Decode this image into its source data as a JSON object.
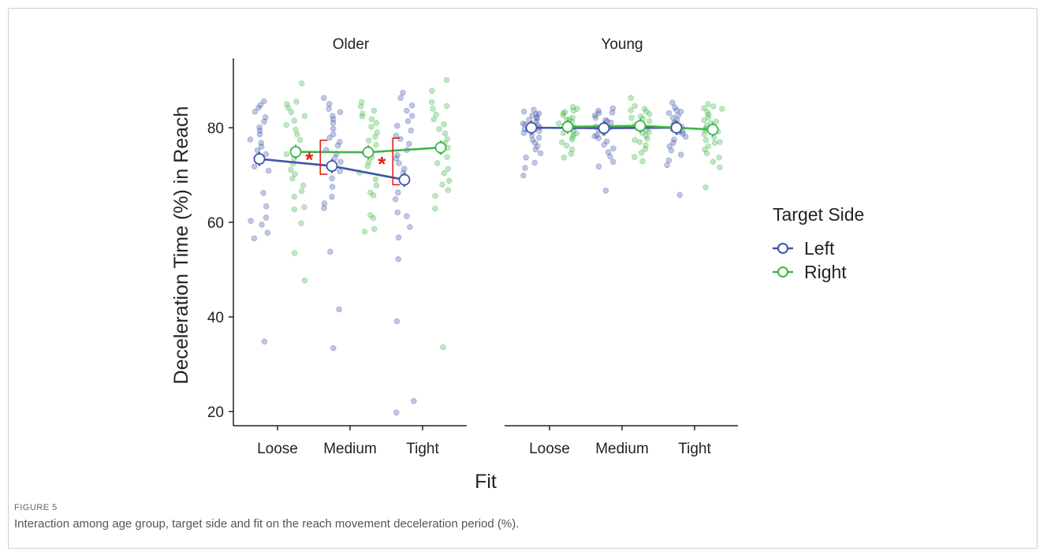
{
  "figure": {
    "label": "FIGURE 5",
    "caption": "Interaction among age group, target side and fit on the reach movement deceleration period (%)."
  },
  "chart_data": {
    "type": "scatter",
    "panels": [
      "Older",
      "Young"
    ],
    "categories": [
      "Loose",
      "Medium",
      "Tight"
    ],
    "xlabel": "Fit",
    "ylabel": "Deceleration Time (%) in Reach",
    "yticks": [
      20,
      40,
      60,
      80
    ],
    "ylim": [
      17,
      94
    ],
    "legend": {
      "title": "Target Side",
      "placement": "right",
      "entries": [
        "Left",
        "Right"
      ]
    },
    "colors": {
      "Left": "#3f55a6",
      "Right": "#3db54a",
      "significance": "#e0201c"
    },
    "significance_marker": "*",
    "significance_brackets": [
      {
        "panel": "Older",
        "between": [
          "Loose",
          "Medium"
        ]
      },
      {
        "panel": "Older",
        "between": [
          "Medium",
          "Tight"
        ]
      }
    ],
    "series": [
      {
        "name": "Left",
        "panel": "Older",
        "means": [
          73.4,
          71.9,
          69.0
        ],
        "points": [
          [
            85.6,
            84.8,
            84.2,
            83.4,
            82.2,
            81.3,
            80.1,
            79.4,
            78.6,
            77.5,
            76.8,
            76.0,
            75.2,
            74.4,
            73.6,
            72.9,
            71.8,
            70.9,
            66.2,
            63.4,
            61.0,
            60.3,
            59.5,
            57.8,
            56.6,
            34.8
          ],
          [
            86.3,
            85.0,
            84.0,
            83.3,
            82.5,
            81.8,
            81.0,
            79.8,
            78.6,
            77.9,
            77.0,
            76.2,
            75.3,
            74.5,
            73.6,
            72.8,
            71.9,
            70.8,
            69.3,
            67.5,
            65.4,
            64.0,
            63.0,
            53.8,
            41.6,
            33.4
          ],
          [
            87.4,
            86.3,
            84.7,
            83.6,
            82.5,
            81.4,
            80.4,
            79.4,
            78.3,
            77.6,
            76.6,
            75.3,
            74.2,
            73.5,
            72.5,
            71.3,
            70.4,
            66.3,
            64.9,
            62.1,
            61.3,
            59.0,
            56.8,
            52.2,
            39.1,
            22.2,
            19.8
          ]
        ]
      },
      {
        "name": "Right",
        "panel": "Older",
        "means": [
          74.9,
          74.8,
          75.8
        ],
        "points": [
          [
            89.4,
            85.5,
            85.0,
            84.2,
            83.3,
            82.5,
            81.5,
            80.6,
            79.6,
            78.6,
            77.4,
            75.4,
            74.4,
            73.5,
            72.4,
            71.1,
            70.2,
            69.3,
            67.8,
            66.6,
            65.4,
            63.2,
            62.7,
            59.8,
            53.5,
            47.7
          ],
          [
            85.4,
            84.5,
            83.6,
            83.0,
            82.4,
            81.8,
            81.0,
            80.2,
            79.0,
            78.1,
            77.3,
            76.4,
            75.5,
            74.7,
            73.8,
            72.8,
            71.9,
            70.5,
            69.1,
            67.8,
            66.3,
            65.7,
            61.5,
            60.9,
            58.6,
            58.0
          ],
          [
            90.1,
            87.8,
            85.4,
            84.6,
            84.0,
            82.8,
            81.8,
            80.7,
            79.7,
            78.8,
            77.6,
            76.7,
            75.8,
            74.9,
            73.8,
            72.5,
            71.3,
            70.4,
            68.8,
            68.0,
            66.8,
            65.6,
            62.9,
            33.6
          ]
        ]
      },
      {
        "name": "Left",
        "panel": "Young",
        "means": [
          80.0,
          79.9,
          80.0
        ],
        "points": [
          [
            83.4,
            83.0,
            82.6,
            82.2,
            81.7,
            81.3,
            80.9,
            80.5,
            80.1,
            79.7,
            79.3,
            78.9,
            78.4,
            77.9,
            77.4,
            76.8,
            76.1,
            75.4,
            74.6,
            73.7,
            72.6,
            71.5,
            69.9,
            83.8,
            82.9,
            81.9,
            80.7,
            79.6
          ],
          [
            84.1,
            83.6,
            83.1,
            82.6,
            82.1,
            81.6,
            81.1,
            80.6,
            80.2,
            79.8,
            79.4,
            78.9,
            78.4,
            77.8,
            77.1,
            76.4,
            75.6,
            74.8,
            73.9,
            72.8,
            71.8,
            66.7,
            83.2,
            81.4,
            80.0,
            78.2
          ],
          [
            85.3,
            84.3,
            83.7,
            83.1,
            82.6,
            82.1,
            81.6,
            81.1,
            80.6,
            80.2,
            79.7,
            79.2,
            78.7,
            78.1,
            77.5,
            76.8,
            76.1,
            75.2,
            74.3,
            73.1,
            72.1,
            65.8,
            83.4,
            80.9,
            79.1
          ]
        ]
      },
      {
        "name": "Right",
        "panel": "Young",
        "means": [
          80.2,
          80.4,
          79.6
        ],
        "points": [
          [
            84.4,
            84.0,
            83.6,
            83.1,
            82.6,
            82.1,
            81.7,
            81.3,
            80.9,
            80.5,
            80.1,
            79.7,
            79.3,
            78.9,
            78.5,
            78.0,
            77.5,
            76.9,
            76.2,
            75.4,
            74.5,
            73.7,
            83.3,
            81.8,
            80.4,
            78.8
          ],
          [
            86.3,
            84.6,
            84.0,
            83.4,
            82.9,
            82.4,
            81.9,
            81.4,
            80.9,
            80.4,
            79.9,
            79.4,
            78.9,
            78.3,
            77.7,
            77.0,
            76.3,
            75.5,
            74.7,
            73.8,
            72.9,
            83.7,
            82.1,
            80.6,
            79.1,
            77.4
          ],
          [
            85.0,
            84.5,
            84.0,
            83.4,
            82.8,
            82.2,
            81.6,
            81.0,
            80.4,
            79.8,
            79.2,
            78.6,
            78.0,
            77.4,
            76.8,
            76.1,
            75.4,
            74.6,
            73.7,
            72.8,
            71.6,
            67.4,
            84.1,
            81.3,
            79.5,
            77.0
          ]
        ]
      }
    ]
  }
}
